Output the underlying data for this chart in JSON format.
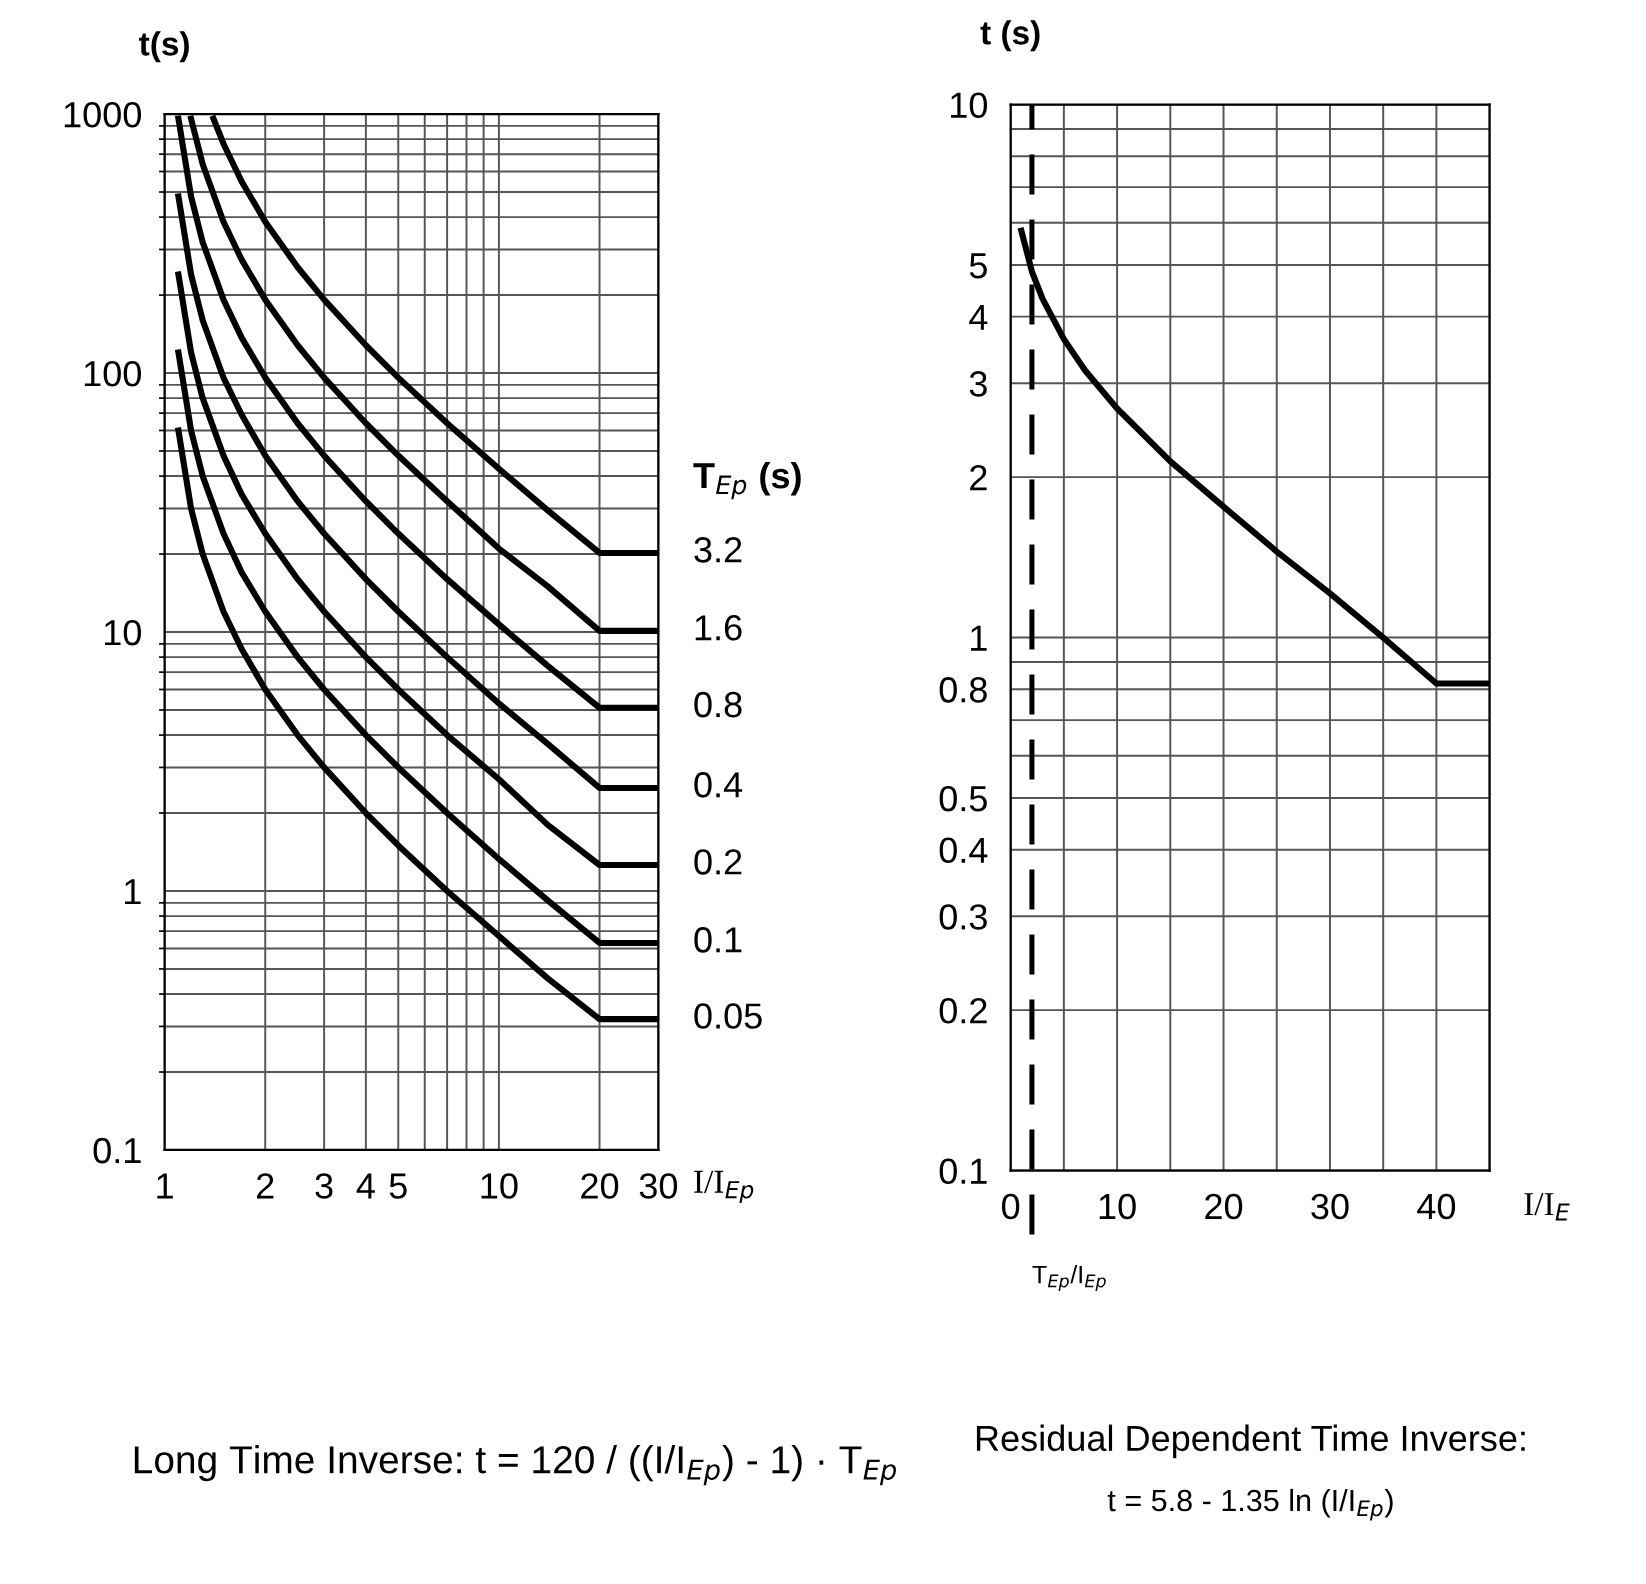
{
  "chart_data": [
    {
      "type": "line",
      "ylabel": "t(s)",
      "xlabel": "I/I$_{Ep}$",
      "legend_title": "T$_{Ep}$ (s)",
      "log": "xy",
      "grid": true,
      "legend": false,
      "line_style": "solid",
      "marker": "none",
      "xlim": [
        1,
        30
      ],
      "xticks": [
        1,
        2,
        3,
        4,
        5,
        {
          "value": 6,
          "label": null
        },
        {
          "value": 7,
          "label": null
        },
        {
          "value": 8,
          "label": null
        },
        {
          "value": 9,
          "label": null
        },
        10,
        20,
        30
      ],
      "ylim": [
        0.1,
        1000
      ],
      "yticks": [
        0.1,
        1,
        10,
        100,
        1000
      ],
      "series": [
        {
          "name": "3.2",
          "color": "#000000",
          "x": [
            1.4,
            1.5,
            1.7,
            2,
            2.5,
            3,
            4,
            5,
            7,
            10,
            14,
            20,
            30
          ],
          "values": [
            960,
            768,
            549,
            384,
            256,
            192,
            128,
            96,
            64,
            42.7,
            29.5,
            20.2,
            20.2
          ]
        },
        {
          "name": "1.6",
          "color": "#000000",
          "x": [
            1.2,
            1.3,
            1.5,
            1.7,
            2,
            2.5,
            3,
            4,
            5,
            7,
            10,
            14,
            20,
            30
          ],
          "values": [
            960,
            640,
            384,
            274,
            192,
            128,
            96,
            64,
            48,
            32,
            21,
            15,
            10.1,
            10.1
          ]
        },
        {
          "name": "0.8",
          "color": "#000000",
          "x": [
            1.1,
            1.2,
            1.3,
            1.5,
            1.7,
            2,
            2.5,
            3,
            4,
            5,
            7,
            10,
            14,
            20,
            30
          ],
          "values": [
            960,
            480,
            320,
            192,
            137,
            96,
            64,
            48,
            32,
            24,
            16,
            10.7,
            7.4,
            5.1,
            5.1
          ]
        },
        {
          "name": "0.4",
          "color": "#000000",
          "x": [
            1.1,
            1.2,
            1.3,
            1.5,
            1.7,
            2,
            2.5,
            3,
            4,
            5,
            7,
            10,
            14,
            20,
            30
          ],
          "values": [
            480,
            240,
            160,
            96,
            69,
            48,
            32,
            24,
            16,
            12,
            8,
            5.3,
            3.7,
            2.5,
            2.5
          ]
        },
        {
          "name": "0.2",
          "color": "#000000",
          "x": [
            1.1,
            1.2,
            1.3,
            1.5,
            1.7,
            2,
            2.5,
            3,
            4,
            5,
            7,
            10,
            14,
            20,
            30
          ],
          "values": [
            240,
            120,
            80,
            48,
            34,
            24,
            16,
            12,
            8,
            6,
            4,
            2.7,
            1.8,
            1.26,
            1.26
          ]
        },
        {
          "name": "0.1",
          "color": "#000000",
          "x": [
            1.1,
            1.2,
            1.3,
            1.5,
            1.7,
            2,
            2.5,
            3,
            4,
            5,
            7,
            10,
            14,
            20,
            30
          ],
          "values": [
            120,
            60,
            40,
            24,
            17,
            12,
            8,
            6,
            4,
            3,
            2,
            1.33,
            0.92,
            0.63,
            0.63
          ]
        },
        {
          "name": "0.05",
          "color": "#000000",
          "x": [
            1.1,
            1.2,
            1.3,
            1.5,
            1.7,
            2,
            2.5,
            3,
            4,
            5,
            7,
            10,
            14,
            20,
            30
          ],
          "values": [
            60,
            30,
            20,
            12,
            8.6,
            6,
            4,
            3,
            2,
            1.5,
            1,
            0.67,
            0.46,
            0.32,
            0.32
          ]
        }
      ],
      "annotations": [
        "Long Time Inverse: t = 120 / ((I/I$_{Ep}$) - 1) · T$_{Ep}$"
      ]
    },
    {
      "type": "line",
      "ylabel": "t (s)",
      "xlabel": "I/I$_{E}$",
      "log": "y",
      "grid": true,
      "line_style": "solid",
      "marker": "none",
      "xlim": [
        0,
        45
      ],
      "xticks": [
        0,
        {
          "value": 5,
          "label": null
        },
        10,
        {
          "value": 15,
          "label": null
        },
        20,
        {
          "value": 25,
          "label": null
        },
        30,
        {
          "value": 35,
          "label": null
        },
        40,
        {
          "value": 45,
          "label": null
        }
      ],
      "ylim": [
        0.1,
        10
      ],
      "yticks": [
        0.1,
        0.2,
        0.3,
        0.4,
        0.5,
        {
          "value": 0.6,
          "label": null
        },
        {
          "value": 0.7,
          "label": null
        },
        0.8,
        {
          "value": 0.9,
          "label": null
        },
        1,
        2,
        3,
        4,
        5,
        {
          "value": 6,
          "label": null
        },
        {
          "value": 7,
          "label": null
        },
        {
          "value": 8,
          "label": null
        },
        {
          "value": 9,
          "label": null
        },
        10
      ],
      "series": [
        {
          "color": "#000000",
          "x": [
            1,
            2,
            3,
            5,
            7,
            10,
            15,
            20,
            25,
            30,
            35,
            40,
            45
          ],
          "values": [
            5.8,
            4.86,
            4.32,
            3.63,
            3.17,
            2.69,
            2.14,
            1.76,
            1.45,
            1.21,
            1.0,
            0.82,
            0.82
          ]
        }
      ],
      "ref_lines": [
        {
          "axis": "x",
          "value": 2,
          "label": "T$_{Ep}$/I$_{Ep}$",
          "color": "#000000",
          "line_style": "dashed"
        }
      ],
      "annotations": [
        "Residual Dependent Time Inverse:",
        "t = 5.8 - 1.35 ln (I/I$_{Ep}$)"
      ]
    }
  ]
}
